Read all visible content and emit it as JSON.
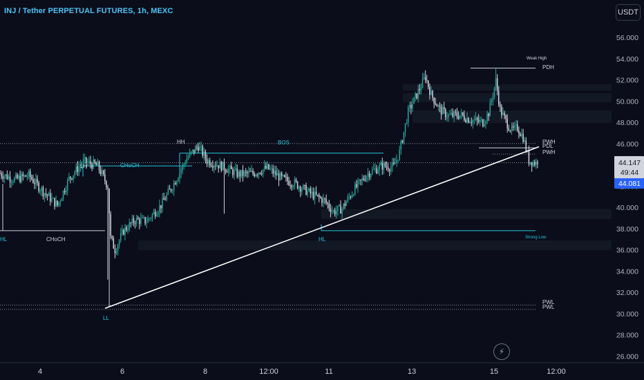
{
  "header": {
    "title": "INJ / Tether PERPETUAL FUTURES, 1h, MEXC",
    "currency": "USDT"
  },
  "colors": {
    "background": "#0b0e1a",
    "candle_up": "#26a69a",
    "candle_down": "#d1d4dc",
    "structure_cyan": "#26c6da",
    "trendline": "#ffffff",
    "last_price_badge": "#2962ff"
  },
  "price_axis": {
    "ticks": [
      "56.000",
      "54.000",
      "52.000",
      "50.000",
      "48.000",
      "46.000",
      "44.000",
      "42.000",
      "40.000",
      "38.000",
      "36.000",
      "34.000",
      "32.000",
      "30.000",
      "28.000",
      "26.000"
    ],
    "current_price": "44.147",
    "countdown": "49:44",
    "last_price": "44.081"
  },
  "time_axis": {
    "ticks": [
      "4",
      "6",
      "8",
      "12:00",
      "11",
      "13",
      "15",
      "12:00"
    ]
  },
  "chart_data": {
    "type": "candlestick",
    "symbol": "INJ / Tether PERPETUAL FUTURES",
    "interval": "1h",
    "exchange": "MEXC",
    "ylim": [
      25.5,
      57.5
    ],
    "path_anchors": [
      {
        "i": 0,
        "p": 43.2
      },
      {
        "i": 10,
        "p": 42.6
      },
      {
        "i": 20,
        "p": 43.0
      },
      {
        "i": 30,
        "p": 41.5
      },
      {
        "i": 40,
        "p": 40.2
      },
      {
        "i": 48,
        "p": 42.7
      },
      {
        "i": 58,
        "p": 44.3
      },
      {
        "i": 68,
        "p": 43.9
      },
      {
        "i": 75,
        "p": 42.0
      },
      {
        "i": 77,
        "p": 37.1
      },
      {
        "i": 80,
        "p": 36.0
      },
      {
        "i": 86,
        "p": 37.8
      },
      {
        "i": 94,
        "p": 38.8
      },
      {
        "i": 102,
        "p": 38.7
      },
      {
        "i": 112,
        "p": 40.2
      },
      {
        "i": 120,
        "p": 42.0
      },
      {
        "i": 130,
        "p": 44.6
      },
      {
        "i": 138,
        "p": 45.8
      },
      {
        "i": 144,
        "p": 44.4
      },
      {
        "i": 154,
        "p": 43.9
      },
      {
        "i": 166,
        "p": 43.1
      },
      {
        "i": 176,
        "p": 43.2
      },
      {
        "i": 186,
        "p": 43.7
      },
      {
        "i": 196,
        "p": 42.7
      },
      {
        "i": 206,
        "p": 42.2
      },
      {
        "i": 216,
        "p": 41.3
      },
      {
        "i": 226,
        "p": 40.6
      },
      {
        "i": 232,
        "p": 39.6
      },
      {
        "i": 238,
        "p": 39.9
      },
      {
        "i": 246,
        "p": 41.6
      },
      {
        "i": 256,
        "p": 43.2
      },
      {
        "i": 266,
        "p": 43.9
      },
      {
        "i": 274,
        "p": 43.8
      },
      {
        "i": 278,
        "p": 45.2
      },
      {
        "i": 284,
        "p": 49.0
      },
      {
        "i": 290,
        "p": 50.6
      },
      {
        "i": 296,
        "p": 52.3
      },
      {
        "i": 300,
        "p": 50.6
      },
      {
        "i": 306,
        "p": 49.2
      },
      {
        "i": 312,
        "p": 48.6
      },
      {
        "i": 320,
        "p": 48.7
      },
      {
        "i": 328,
        "p": 48.2
      },
      {
        "i": 336,
        "p": 48.0
      },
      {
        "i": 340,
        "p": 48.9
      },
      {
        "i": 345,
        "p": 51.9
      },
      {
        "i": 348,
        "p": 49.2
      },
      {
        "i": 352,
        "p": 48.1
      },
      {
        "i": 356,
        "p": 47.2
      },
      {
        "i": 360,
        "p": 47.5
      },
      {
        "i": 364,
        "p": 46.6
      },
      {
        "i": 368,
        "p": 44.4
      },
      {
        "i": 374,
        "p": 44.1
      }
    ],
    "levels": [
      {
        "name": "PDH",
        "price": 53.1
      },
      {
        "name": "PWH",
        "price": 46.0
      },
      {
        "name": "PDL",
        "price": 45.6
      },
      {
        "name": "PWH",
        "price": 45.0
      },
      {
        "name": "PWL",
        "price": 30.8
      },
      {
        "name": "PWL",
        "price": 30.4
      }
    ],
    "structure_labels": [
      "Weak High",
      "PDH",
      "BOS",
      "HH",
      "LH",
      "CHoCH",
      "CHoCH",
      "HL",
      "HL",
      "LL",
      "Strong Low",
      "PWH",
      "PDL",
      "PWH",
      "PWL",
      "PWL"
    ],
    "annotations": {
      "weak_high": "Weak High",
      "strong_low": "Strong Low",
      "bos": "BOS",
      "hh": "HH",
      "lh": "LH",
      "choch_cyan": "CHoCH",
      "choch_white": "CHoCH",
      "hl_left": "HL",
      "hl_mid": "HL",
      "ll": "LL",
      "pdh": "PDH",
      "pwh_top": "PWH",
      "pdl": "PDL",
      "pwh_bottom": "PWH",
      "pwl_top": "PWL",
      "pwl_bottom": "PWL"
    }
  }
}
